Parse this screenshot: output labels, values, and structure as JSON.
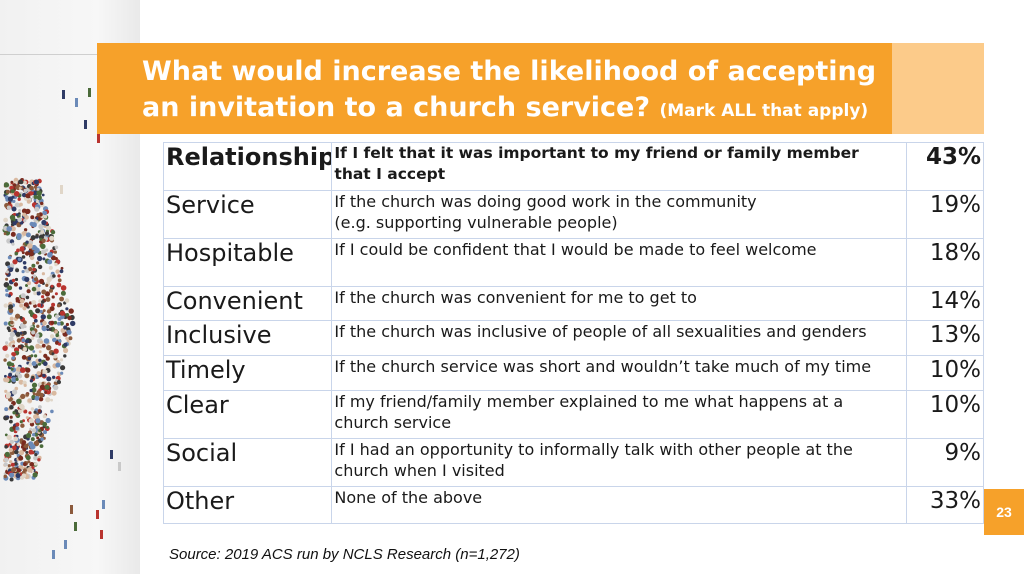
{
  "title": {
    "line1": "What would increase the likelihood of accepting",
    "line2": "an invitation to a church service?",
    "note": "(Mark ALL that apply)"
  },
  "rows": [
    {
      "category": "Relationship",
      "description_lines": [
        "If I felt that it was important to my friend or family member",
        "that I accept"
      ],
      "percent": "43%"
    },
    {
      "category": "Service",
      "description_lines": [
        "If the church was doing good work in the community",
        "(e.g. supporting vulnerable people)"
      ],
      "percent": "19%"
    },
    {
      "category": "Hospitable",
      "description_lines": [
        "If I could be confident that I would be made to feel welcome"
      ],
      "percent": "18%"
    },
    {
      "category": "Convenient",
      "description_lines": [
        "If the church was convenient for me to get to"
      ],
      "percent": "14%"
    },
    {
      "category": "Inclusive",
      "description_lines": [
        "If the church was inclusive of people of all sexualities and genders"
      ],
      "percent": "13%"
    },
    {
      "category": "Timely",
      "description_lines": [
        "If the church service was short and wouldn’t take much of my time"
      ],
      "percent": "10%"
    },
    {
      "category": "Clear",
      "description_lines": [
        "If my friend/family member explained to me what happens at a",
        "church service"
      ],
      "percent": "10%"
    },
    {
      "category": "Social",
      "description_lines": [
        "If I had an opportunity to informally talk with other people at the",
        "church when I visited"
      ],
      "percent": "9%"
    },
    {
      "category": "Other",
      "description_lines": [
        "None of the above"
      ],
      "percent": "33%"
    }
  ],
  "source": "Source: 2019 ACS run by NCLS Research (n=1,272)",
  "page_number": "23",
  "colors": {
    "accent": "#f6a12a",
    "accent_light": "#fccb8a",
    "border": "#c9d5ea"
  }
}
